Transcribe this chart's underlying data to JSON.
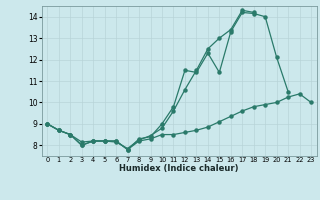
{
  "xlabel": "Humidex (Indice chaleur)",
  "x_values": [
    0,
    1,
    2,
    3,
    4,
    5,
    6,
    7,
    8,
    9,
    10,
    11,
    12,
    13,
    14,
    15,
    16,
    17,
    18,
    19,
    20,
    21,
    22,
    23
  ],
  "line1": [
    9.0,
    8.7,
    8.5,
    8.0,
    8.2,
    8.2,
    8.2,
    7.8,
    8.2,
    8.3,
    8.5,
    8.5,
    8.6,
    8.7,
    8.85,
    9.1,
    9.35,
    9.6,
    9.8,
    9.9,
    10.0,
    10.25,
    10.4,
    10.0
  ],
  "line2": [
    9.0,
    8.7,
    8.5,
    8.0,
    8.2,
    8.2,
    8.2,
    7.8,
    8.3,
    8.4,
    9.0,
    9.8,
    11.5,
    11.4,
    12.3,
    11.4,
    13.3,
    14.2,
    14.15,
    14.0,
    12.1,
    10.5,
    null,
    null
  ],
  "line3": [
    9.0,
    8.7,
    8.5,
    8.15,
    8.2,
    8.2,
    8.15,
    7.85,
    8.25,
    8.45,
    8.8,
    9.6,
    10.6,
    11.5,
    12.5,
    13.0,
    13.4,
    14.3,
    14.2,
    null,
    null,
    null,
    null,
    null
  ],
  "bg_color": "#cce8ec",
  "line_color": "#2a7a6a",
  "grid_color": "#b8d4d8",
  "ylim": [
    7.5,
    14.5
  ],
  "xlim": [
    -0.5,
    23.5
  ],
  "yticks": [
    8,
    9,
    10,
    11,
    12,
    13,
    14
  ],
  "xtick_labels": [
    "0",
    "1",
    "2",
    "3",
    "4",
    "5",
    "6",
    "7",
    "8",
    "9",
    "10",
    "11",
    "12",
    "13",
    "14",
    "15",
    "16",
    "17",
    "18",
    "19",
    "20",
    "21",
    "22",
    "23"
  ]
}
